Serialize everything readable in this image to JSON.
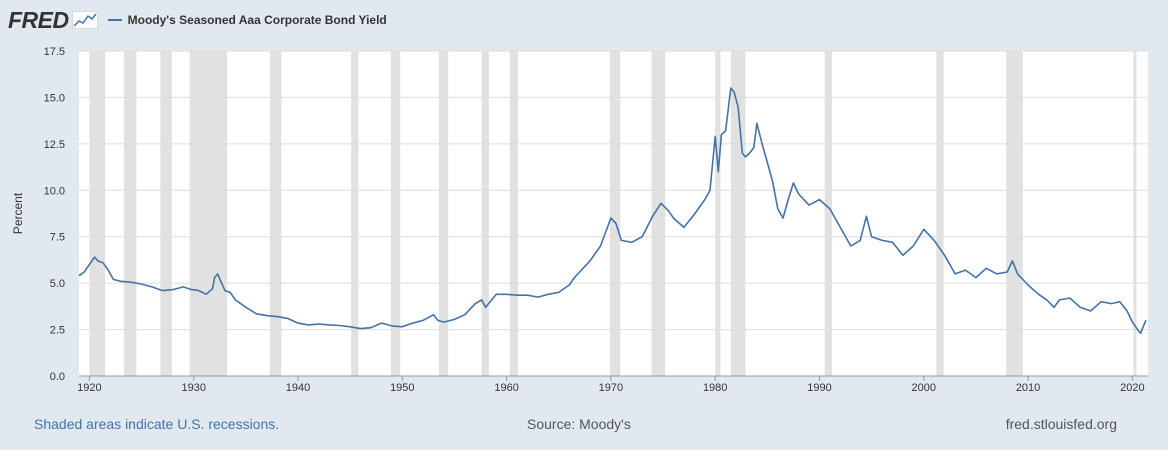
{
  "header": {
    "logo_text": "FRED",
    "legend_label": "Moody's Seasoned Aaa Corporate Bond Yield"
  },
  "footer": {
    "recession_note": "Shaded areas indicate U.S. recessions.",
    "source": "Source: Moody's",
    "site": "fred.stlouisfed.org"
  },
  "colors": {
    "background": "#e1e9f0",
    "plot_background": "#ffffff",
    "series": "#4572a7",
    "recession": "#e1e1e1",
    "grid": "#dddddd"
  },
  "chart_data": {
    "type": "line",
    "title": "",
    "xlabel": "",
    "ylabel": "Percent",
    "xlim": [
      1919.0,
      2021.5
    ],
    "ylim": [
      0,
      17.5
    ],
    "x_ticks": [
      1920,
      1930,
      1940,
      1950,
      1960,
      1970,
      1980,
      1990,
      2000,
      2010,
      2020
    ],
    "x_tick_labels": [
      "1920",
      "1930",
      "1940",
      "1950",
      "1960",
      "1970",
      "1980",
      "1990",
      "2000",
      "2010",
      "2020"
    ],
    "y_ticks": [
      0,
      2.5,
      5,
      7.5,
      10,
      12.5,
      15,
      17.5
    ],
    "y_tick_labels": [
      "0.0",
      "2.5",
      "5.0",
      "7.5",
      "10.0",
      "12.5",
      "15.0",
      "17.5"
    ],
    "grid": true,
    "legend": "top-left",
    "recessions": [
      [
        1920.0,
        1921.5
      ],
      [
        1923.3,
        1924.5
      ],
      [
        1926.8,
        1927.9
      ],
      [
        1929.6,
        1933.2
      ],
      [
        1937.3,
        1938.4
      ],
      [
        1945.1,
        1945.8
      ],
      [
        1948.9,
        1949.8
      ],
      [
        1953.5,
        1954.4
      ],
      [
        1957.6,
        1958.3
      ],
      [
        1960.3,
        1961.1
      ],
      [
        1969.9,
        1970.9
      ],
      [
        1973.9,
        1975.2
      ],
      [
        1980.0,
        1980.5
      ],
      [
        1981.5,
        1982.9
      ],
      [
        1990.5,
        1991.2
      ],
      [
        2001.2,
        2001.9
      ],
      [
        2007.9,
        2009.5
      ],
      [
        2020.1,
        2020.4
      ]
    ],
    "series": [
      {
        "name": "Moody's Seasoned Aaa Corporate Bond Yield",
        "x": [
          1919.0,
          1919.5,
          1920.0,
          1920.5,
          1920.8,
          1921.3,
          1921.8,
          1922.3,
          1923.0,
          1924.0,
          1925.0,
          1926.0,
          1927.0,
          1928.0,
          1929.0,
          1929.8,
          1930.5,
          1931.2,
          1931.8,
          1932.0,
          1932.3,
          1932.6,
          1933.0,
          1933.5,
          1934.0,
          1935.0,
          1936.0,
          1937.0,
          1938.0,
          1939.0,
          1940.0,
          1941.0,
          1942.0,
          1943.0,
          1944.0,
          1945.0,
          1946.0,
          1947.0,
          1948.0,
          1949.0,
          1950.0,
          1951.0,
          1952.0,
          1953.0,
          1953.4,
          1954.0,
          1955.0,
          1956.0,
          1957.0,
          1957.6,
          1958.0,
          1959.0,
          1960.0,
          1961.0,
          1962.0,
          1963.0,
          1964.0,
          1965.0,
          1966.0,
          1966.5,
          1967.0,
          1968.0,
          1969.0,
          1970.0,
          1970.5,
          1971.0,
          1972.0,
          1973.0,
          1974.0,
          1974.8,
          1975.5,
          1976.0,
          1977.0,
          1978.0,
          1979.0,
          1979.5,
          1980.0,
          1980.3,
          1980.6,
          1981.0,
          1981.5,
          1981.8,
          1982.2,
          1982.6,
          1982.9,
          1983.3,
          1983.7,
          1984.0,
          1984.5,
          1985.0,
          1985.5,
          1986.0,
          1986.5,
          1987.0,
          1987.5,
          1988.0,
          1989.0,
          1990.0,
          1991.0,
          1992.0,
          1993.0,
          1993.9,
          1994.5,
          1995.0,
          1996.0,
          1997.0,
          1998.0,
          1999.0,
          2000.0,
          2001.0,
          2002.0,
          2003.0,
          2004.0,
          2005.0,
          2006.0,
          2007.0,
          2008.0,
          2008.5,
          2009.0,
          2010.0,
          2011.0,
          2011.8,
          2012.5,
          2013.0,
          2014.0,
          2015.0,
          2016.0,
          2017.0,
          2018.0,
          2018.8,
          2019.5,
          2020.0,
          2020.5,
          2020.8,
          2021.0,
          2021.3
        ],
        "values": [
          5.4,
          5.6,
          6.0,
          6.4,
          6.2,
          6.1,
          5.7,
          5.2,
          5.1,
          5.05,
          4.95,
          4.8,
          4.6,
          4.65,
          4.8,
          4.65,
          4.6,
          4.4,
          4.7,
          5.3,
          5.5,
          5.1,
          4.6,
          4.5,
          4.1,
          3.7,
          3.35,
          3.25,
          3.2,
          3.1,
          2.85,
          2.75,
          2.8,
          2.75,
          2.72,
          2.65,
          2.55,
          2.6,
          2.85,
          2.7,
          2.65,
          2.85,
          3.0,
          3.3,
          3.0,
          2.9,
          3.05,
          3.3,
          3.9,
          4.1,
          3.7,
          4.4,
          4.4,
          4.35,
          4.35,
          4.25,
          4.4,
          4.5,
          4.9,
          5.3,
          5.6,
          6.2,
          7.0,
          8.5,
          8.2,
          7.3,
          7.2,
          7.5,
          8.6,
          9.3,
          8.9,
          8.5,
          8.0,
          8.7,
          9.5,
          10.0,
          12.9,
          11.0,
          13.0,
          13.2,
          15.5,
          15.3,
          14.5,
          12.0,
          11.8,
          12.0,
          12.3,
          13.6,
          12.5,
          11.5,
          10.5,
          9.0,
          8.5,
          9.5,
          10.4,
          9.8,
          9.2,
          9.5,
          9.0,
          8.0,
          7.0,
          7.3,
          8.6,
          7.5,
          7.3,
          7.2,
          6.5,
          7.0,
          7.9,
          7.3,
          6.5,
          5.5,
          5.7,
          5.3,
          5.8,
          5.5,
          5.6,
          6.2,
          5.5,
          4.9,
          4.4,
          4.1,
          3.7,
          4.1,
          4.2,
          3.7,
          3.5,
          4.0,
          3.9,
          4.0,
          3.5,
          2.9,
          2.5,
          2.3,
          2.6,
          3.0
        ]
      }
    ]
  }
}
